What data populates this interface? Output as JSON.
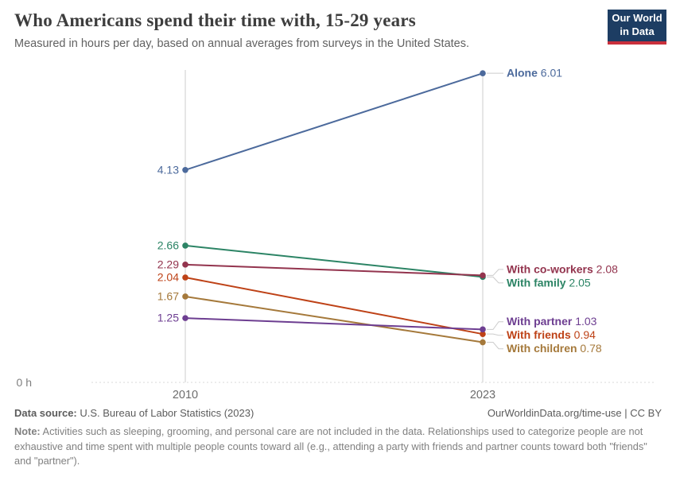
{
  "header": {
    "title": "Who Americans spend their time with, 15-29 years",
    "subtitle": "Measured in hours per day, based on annual averages from surveys in the United States.",
    "logo": {
      "line1": "Our World",
      "line2": "in Data",
      "bg_color": "#1d3d63",
      "accent_color": "#c9303c"
    }
  },
  "chart_data": {
    "type": "line",
    "variant": "slope",
    "x": [
      "2010",
      "2023"
    ],
    "series": [
      {
        "name": "Alone",
        "values": [
          4.13,
          6.01
        ],
        "color": "#4C6A9C"
      },
      {
        "name": "With family",
        "values": [
          2.66,
          2.05
        ],
        "color": "#2C8465"
      },
      {
        "name": "With co-workers",
        "values": [
          2.29,
          2.08
        ],
        "color": "#93344E"
      },
      {
        "name": "With children",
        "values": [
          1.67,
          0.78
        ],
        "color": "#A5793B"
      },
      {
        "name": "With friends",
        "values": [
          2.04,
          0.94
        ],
        "color": "#BE4217"
      },
      {
        "name": "With partner",
        "values": [
          1.25,
          1.03
        ],
        "color": "#6D3E91"
      }
    ],
    "ylim": [
      0,
      6.2
    ],
    "y_zero_label": "0 h",
    "grid": "dashed-zero-line-only",
    "legend_position": "right-inline-labels",
    "axis_colors": {
      "line": "#cdcdcd",
      "zero_dash": "#d9d9d9",
      "tick_text": "#6d6d6d",
      "connector": "#cccccc"
    }
  },
  "footer": {
    "datasource_label": "Data source:",
    "datasource_text": " U.S. Bureau of Labor Statistics (2023)",
    "attribution": "OurWorldinData.org/time-use | CC BY",
    "note_label": "Note:",
    "note_text": " Activities such as sleeping, grooming, and personal care are not included in the data. Relationships used to categorize people are not exhaustive and time spent with multiple people counts toward all (e.g., attending a party with friends and partner counts toward both \"friends\" and \"partner\")."
  }
}
